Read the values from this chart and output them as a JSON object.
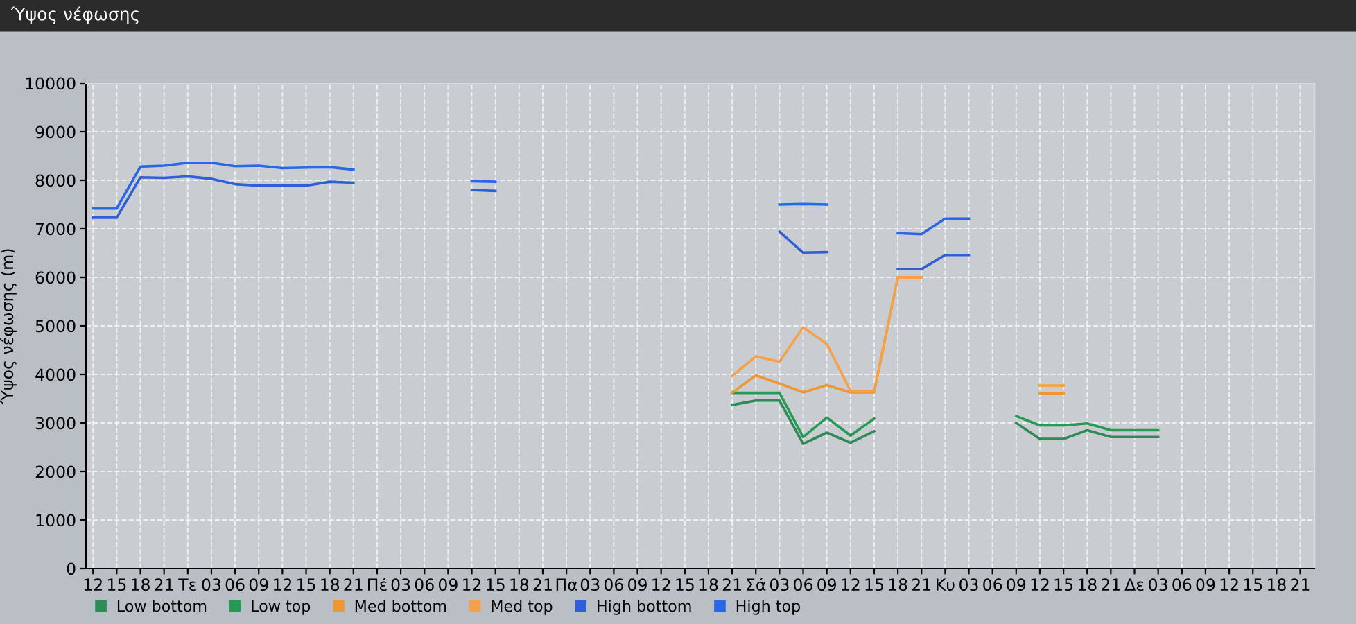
{
  "chart_data": {
    "type": "line",
    "title": "Ύψος νέφωσης",
    "ylabel": "Ύψος νέφωσης (m)",
    "categories": [
      "12",
      "15",
      "18",
      "21",
      "Τε",
      "03",
      "06",
      "09",
      "12",
      "15",
      "18",
      "21",
      "Πέ",
      "03",
      "06",
      "09",
      "12",
      "15",
      "18",
      "21",
      "Πα",
      "03",
      "06",
      "09",
      "12",
      "15",
      "18",
      "21",
      "Σά",
      "03",
      "06",
      "09",
      "12",
      "15",
      "18",
      "21",
      "Κυ",
      "03",
      "06",
      "09",
      "12",
      "15",
      "18",
      "21",
      "Δε",
      "03",
      "06",
      "09",
      "12",
      "15",
      "18",
      "21"
    ],
    "ylim": [
      0,
      10000
    ],
    "yticks": [
      0,
      1000,
      2000,
      3000,
      4000,
      5000,
      6000,
      7000,
      8000,
      9000,
      10000
    ],
    "grid": true,
    "legend": "bottom left",
    "marker": "none",
    "line_style": "solid",
    "series": [
      {
        "name": "Low bottom",
        "color": "#2e8b57",
        "values": [
          null,
          null,
          null,
          null,
          null,
          null,
          null,
          null,
          null,
          null,
          null,
          null,
          null,
          null,
          null,
          null,
          null,
          null,
          null,
          null,
          null,
          null,
          null,
          null,
          null,
          null,
          null,
          3370,
          3460,
          3460,
          2570,
          2800,
          2590,
          2830,
          null,
          null,
          null,
          null,
          null,
          3000,
          2670,
          2670,
          2850,
          2710,
          2710,
          2710,
          null,
          null,
          null,
          null,
          null,
          null
        ]
      },
      {
        "name": "Low top",
        "color": "#249a55",
        "values": [
          null,
          null,
          null,
          null,
          null,
          null,
          null,
          null,
          null,
          null,
          null,
          null,
          null,
          null,
          null,
          null,
          null,
          null,
          null,
          null,
          null,
          null,
          null,
          null,
          null,
          null,
          null,
          3620,
          3620,
          3620,
          2710,
          3110,
          2740,
          3090,
          null,
          null,
          null,
          null,
          null,
          3140,
          2950,
          2950,
          2990,
          2850,
          2850,
          2850,
          null,
          null,
          null,
          null,
          null,
          null
        ]
      },
      {
        "name": "Med bottom",
        "color": "#f0962e",
        "values": [
          null,
          null,
          null,
          null,
          null,
          null,
          null,
          null,
          null,
          null,
          null,
          null,
          null,
          null,
          null,
          null,
          null,
          null,
          null,
          null,
          null,
          null,
          null,
          null,
          null,
          null,
          null,
          3620,
          3980,
          3810,
          3630,
          3780,
          3630,
          3630,
          6000,
          6000,
          null,
          null,
          null,
          null,
          3610,
          3610,
          null,
          null,
          null,
          null,
          null,
          null,
          null,
          null,
          null,
          null
        ]
      },
      {
        "name": "Med top",
        "color": "#f5a04a",
        "values": [
          null,
          null,
          null,
          null,
          null,
          null,
          null,
          null,
          null,
          null,
          null,
          null,
          null,
          null,
          null,
          null,
          null,
          null,
          null,
          null,
          null,
          null,
          null,
          null,
          null,
          null,
          null,
          3970,
          4370,
          4260,
          4970,
          4630,
          3660,
          3660,
          6000,
          6000,
          null,
          null,
          null,
          null,
          3770,
          3770,
          null,
          null,
          null,
          null,
          null,
          null,
          null,
          null,
          null,
          null
        ]
      },
      {
        "name": "High bottom",
        "color": "#2f5fd8",
        "values": [
          7230,
          7230,
          8060,
          8050,
          8080,
          8030,
          7920,
          7890,
          7890,
          7890,
          7970,
          7950,
          null,
          null,
          null,
          null,
          7800,
          7780,
          null,
          null,
          null,
          null,
          null,
          null,
          null,
          null,
          null,
          null,
          null,
          6940,
          6510,
          6520,
          null,
          null,
          6170,
          6170,
          6460,
          6460,
          null,
          null,
          null,
          null,
          null,
          null,
          null,
          null,
          null,
          null,
          null,
          null,
          null,
          null
        ]
      },
      {
        "name": "High top",
        "color": "#2a66e8",
        "values": [
          7420,
          7420,
          8280,
          8300,
          8360,
          8360,
          8290,
          8300,
          8250,
          8260,
          8270,
          8220,
          null,
          null,
          null,
          null,
          7980,
          7970,
          null,
          null,
          null,
          null,
          null,
          null,
          null,
          null,
          null,
          null,
          null,
          7500,
          7510,
          7500,
          null,
          null,
          6910,
          6890,
          7210,
          7210,
          null,
          null,
          null,
          null,
          null,
          null,
          null,
          null,
          null,
          null,
          null,
          null,
          null,
          null
        ]
      }
    ]
  }
}
